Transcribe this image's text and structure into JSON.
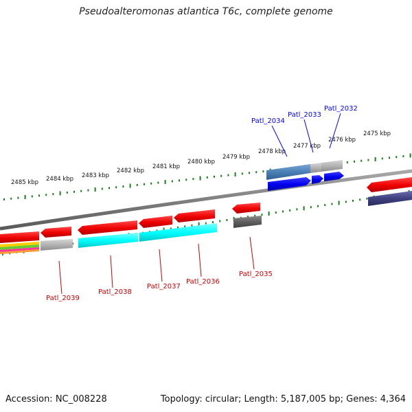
{
  "title": "Pseudoalteromonas atlantica T6c, complete genome",
  "footer": {
    "accession": "Accession: NC_008228",
    "topology": "Topology: circular; Length: 5,187,005 bp; Genes: 4,364"
  },
  "scale": {
    "ticks": [
      {
        "label": "2485 kbp"
      },
      {
        "label": "2484 kbp"
      },
      {
        "label": "2483 kbp"
      },
      {
        "label": "2482 kbp"
      },
      {
        "label": "2481 kbp"
      },
      {
        "label": "2480 kbp"
      },
      {
        "label": "2479 kbp"
      },
      {
        "label": "2478 kbp"
      },
      {
        "label": "2477 kbp"
      },
      {
        "label": "2476 kbp"
      },
      {
        "label": "2475 kbp"
      }
    ]
  },
  "genes": {
    "forward": [
      {
        "name": "Patl_2034",
        "color": "#0000ff"
      },
      {
        "name": "Patl_2033",
        "color": "#0000ff"
      },
      {
        "name": "Patl_2032",
        "color": "#0000ff"
      }
    ],
    "reverse": [
      {
        "name": "Patl_2039",
        "color": "#cc0000"
      },
      {
        "name": "Patl_2038",
        "color": "#cc0000"
      },
      {
        "name": "Patl_2037",
        "color": "#cc0000"
      },
      {
        "name": "Patl_2036",
        "color": "#cc0000"
      },
      {
        "name": "Patl_2035",
        "color": "#cc0000"
      }
    ]
  },
  "colors": {
    "backbone": "#808080",
    "tick": "#1a7f1a",
    "cds_reverse": "#ee0000",
    "cds_forward": "#0000ee",
    "cog_cyan": "#00ffff",
    "cog_grey": "#b3b3b3",
    "cog_dark": "#606060",
    "cog_steel": "#4a7fb5",
    "cog_purple": "#404080"
  }
}
